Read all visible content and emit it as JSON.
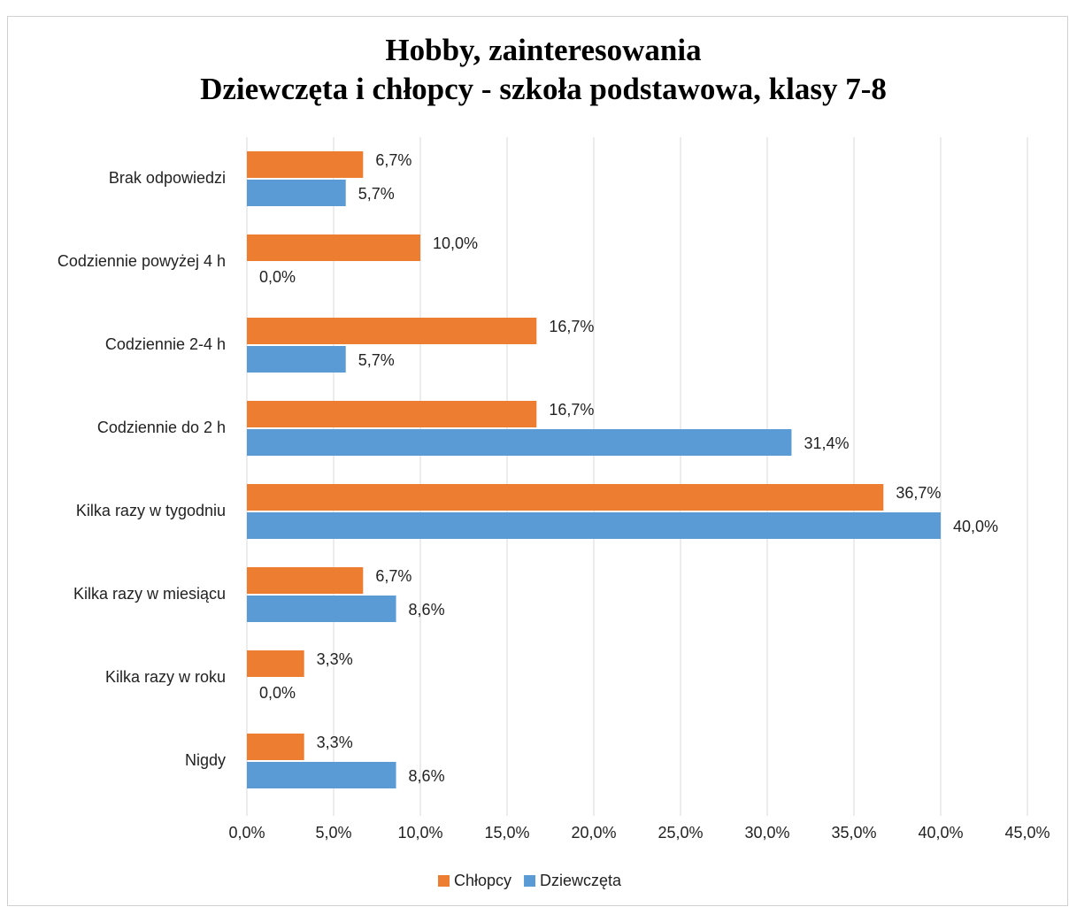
{
  "chart_data": {
    "type": "bar",
    "orientation": "horizontal",
    "title": [
      "Hobby, zainteresowania",
      "Dziewczęta i chłopcy - szkoła podstawowa, klasy 7-8"
    ],
    "categories": [
      "Brak odpowiedzi",
      "Codziennie powyżej 4 h",
      "Codziennie 2-4 h",
      "Codziennie do 2 h",
      "Kilka razy w tygodniu",
      "Kilka razy w miesiącu",
      "Kilka razy w roku",
      "Nigdy"
    ],
    "series": [
      {
        "name": "Chłopcy",
        "color": "#ed7d31",
        "values": [
          6.7,
          10.0,
          16.7,
          16.7,
          36.7,
          6.7,
          3.3,
          3.3
        ],
        "value_labels": [
          "6,7%",
          "10,0%",
          "16,7%",
          "16,7%",
          "36,7%",
          "6,7%",
          "3,3%",
          "3,3%"
        ]
      },
      {
        "name": "Dziewczęta",
        "color": "#5b9bd5",
        "values": [
          5.7,
          0.0,
          5.7,
          31.4,
          40.0,
          8.6,
          0.0,
          8.6
        ],
        "value_labels": [
          "5,7%",
          "0,0%",
          "5,7%",
          "31,4%",
          "40,0%",
          "8,6%",
          "0,0%",
          "8,6%"
        ]
      }
    ],
    "xlim": [
      0,
      45
    ],
    "xticks": [
      {
        "value": 0,
        "label": "0,0%"
      },
      {
        "value": 5,
        "label": "5,0%"
      },
      {
        "value": 10,
        "label": "10,0%"
      },
      {
        "value": 15,
        "label": "15,0%"
      },
      {
        "value": 20,
        "label": "20,0%"
      },
      {
        "value": 25,
        "label": "25,0%"
      },
      {
        "value": 30,
        "label": "30,0%"
      },
      {
        "value": 35,
        "label": "35,0%"
      },
      {
        "value": 40,
        "label": "40,0%"
      },
      {
        "value": 45,
        "label": "45,0%"
      }
    ],
    "grid": true,
    "legend": "bottom"
  }
}
